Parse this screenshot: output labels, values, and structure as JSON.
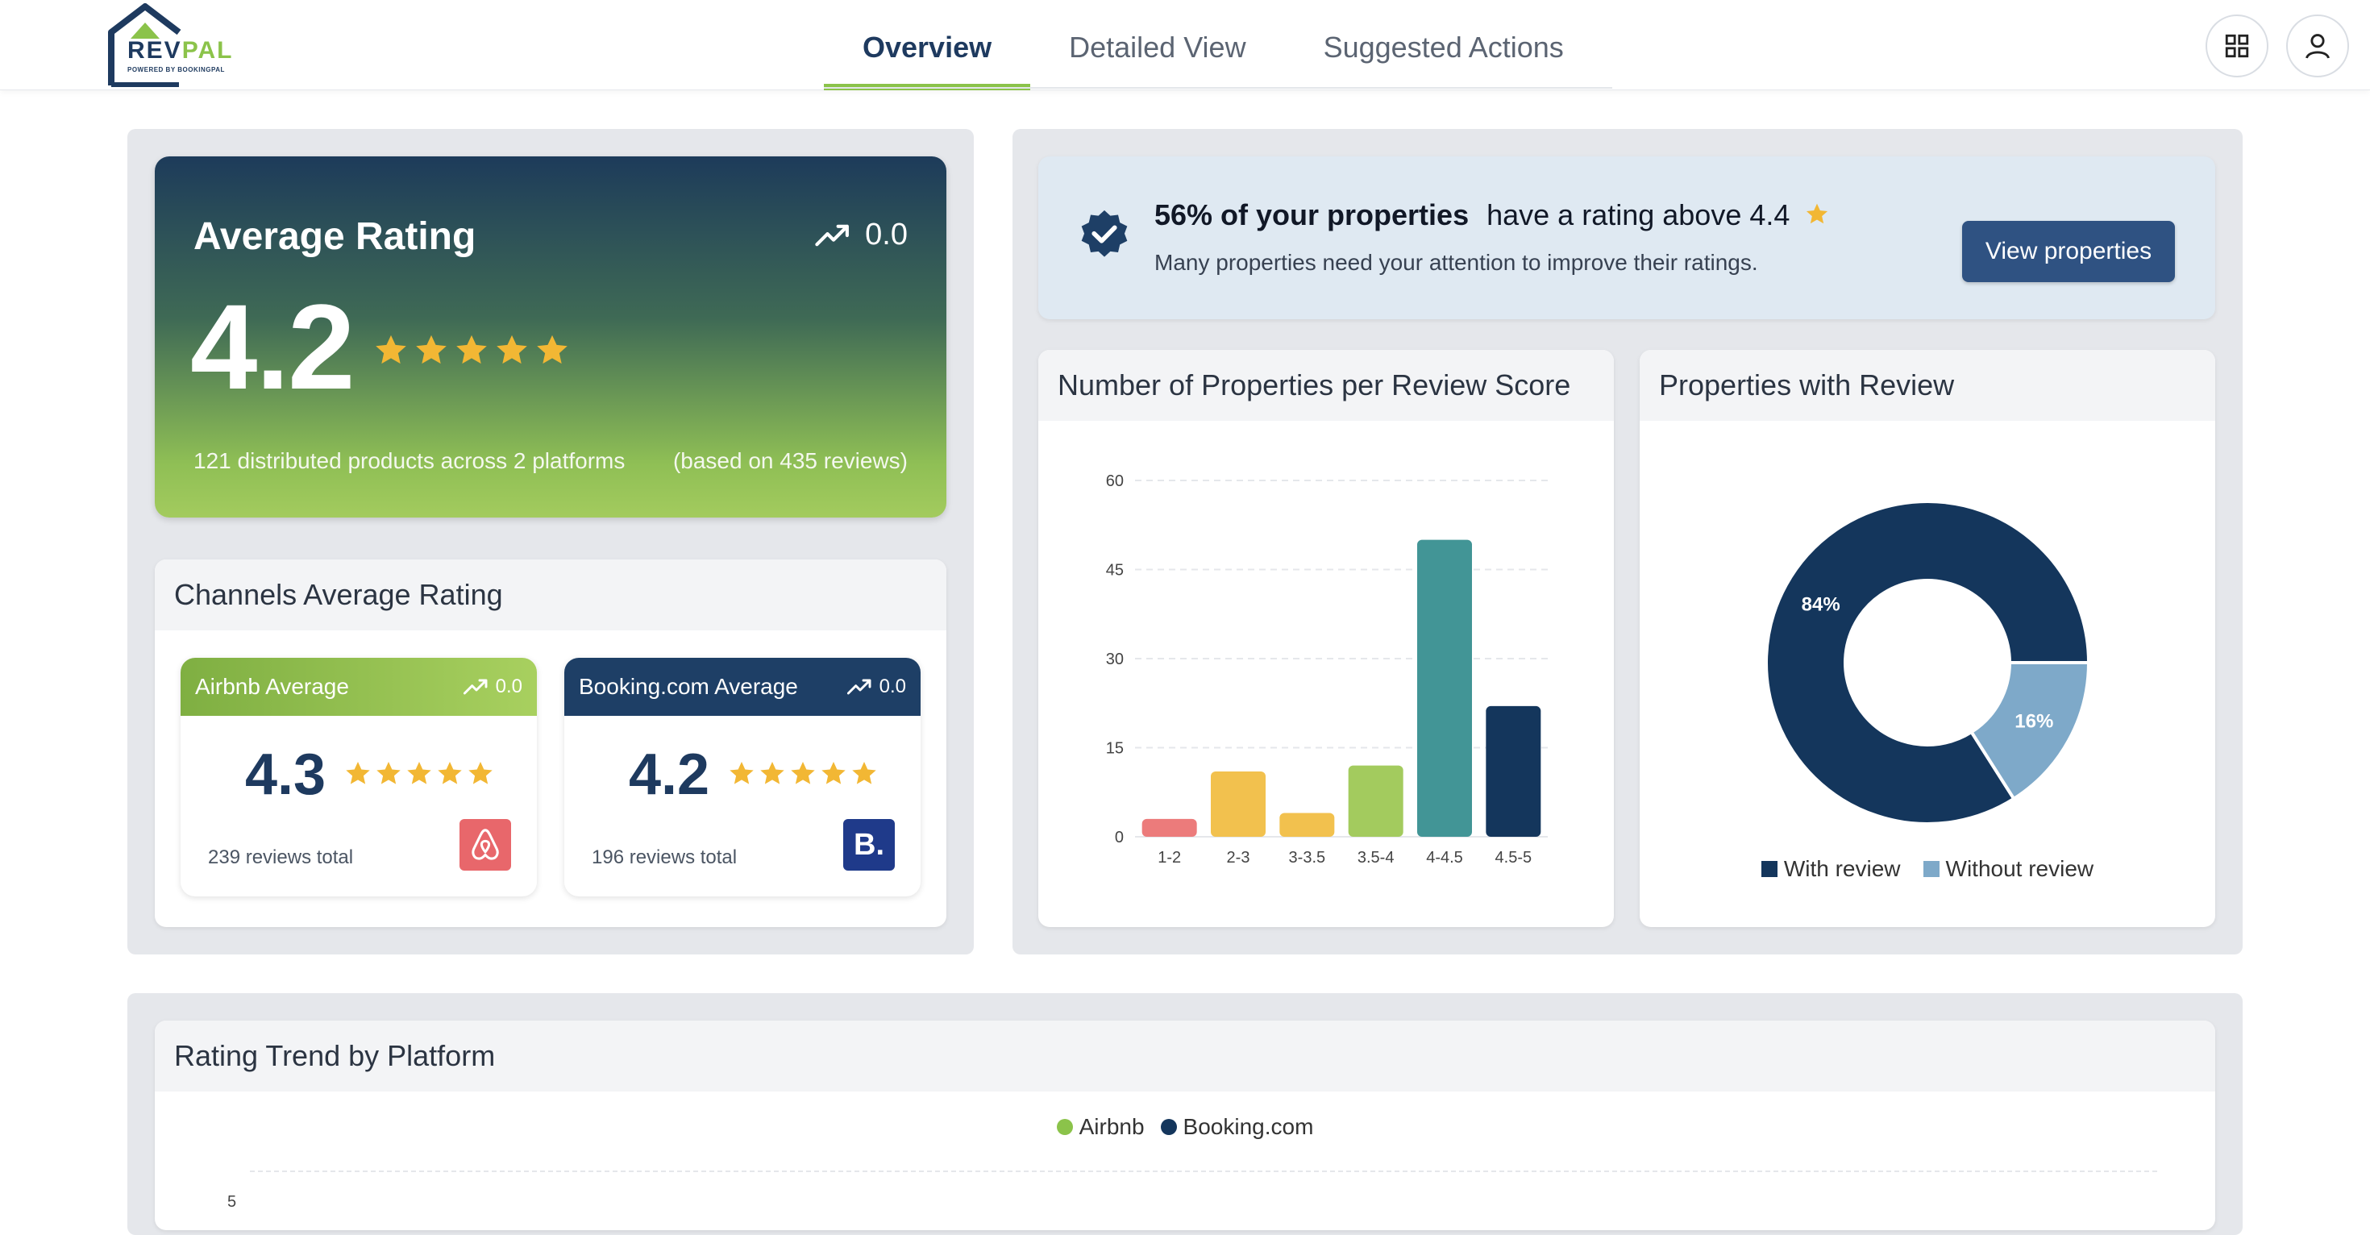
{
  "header": {
    "logo_main": "REV",
    "logo_accent": "PAL",
    "logo_sub": "POWERED BY BOOKINGPAL",
    "tabs": [
      {
        "label": "Overview",
        "active": true
      },
      {
        "label": "Detailed View",
        "active": false
      },
      {
        "label": "Suggested Actions",
        "active": false
      }
    ],
    "icons": [
      "grid-icon",
      "user-icon"
    ]
  },
  "average_rating": {
    "title": "Average Rating",
    "trend": "0.0",
    "value": "4.2",
    "stars": 5,
    "distributed": "121 distributed products across 2 platforms",
    "based_on": "(based on 435 reviews)"
  },
  "channels": {
    "title": "Channels Average Rating",
    "airbnb": {
      "title": "Airbnb Average",
      "trend": "0.0",
      "value": "4.3",
      "reviews": "239 reviews total",
      "color": "#8bc34a"
    },
    "booking": {
      "title": "Booking.com Average",
      "trend": "0.0",
      "value": "4.2",
      "reviews": "196 reviews total",
      "logo": "B.",
      "color": "#1e3a5f"
    }
  },
  "banner": {
    "headline_bold": "56% of your properties",
    "headline_rest": "have a rating above 4.4",
    "subtext": "Many properties need your attention to improve their ratings.",
    "button": "View properties"
  },
  "bar_card": {
    "title": "Number of Properties per Review Score"
  },
  "pie_card": {
    "title": "Properties with Review"
  },
  "trend_card": {
    "title": "Rating Trend by Platform"
  },
  "chart_data": [
    {
      "type": "bar",
      "title": "Number of Properties per Review Score",
      "categories": [
        "1-2",
        "2-3",
        "3-3.5",
        "3.5-4",
        "4-4.5",
        "4.5-5"
      ],
      "values": [
        3,
        11,
        4,
        12,
        50,
        22
      ],
      "colors": [
        "#ec7b7b",
        "#f2c14e",
        "#f2c14e",
        "#a3cb5e",
        "#429596",
        "#14365c"
      ],
      "yticks": [
        0,
        15,
        30,
        45,
        60
      ],
      "ylim": [
        0,
        60
      ],
      "grid": true
    },
    {
      "type": "pie",
      "title": "Properties with Review",
      "labels": [
        "With review",
        "Without review"
      ],
      "values": [
        84,
        16
      ],
      "display": [
        "84%",
        "16%"
      ],
      "colors": [
        "#14365c",
        "#7ea9c9"
      ],
      "donut": true,
      "legend": "bottom"
    },
    {
      "type": "line",
      "title": "Rating Trend by Platform",
      "series": [
        {
          "name": "Airbnb",
          "color": "#8bc34a"
        },
        {
          "name": "Booking.com",
          "color": "#14365c"
        }
      ],
      "yticks": [
        "5"
      ],
      "legend": "top"
    }
  ]
}
